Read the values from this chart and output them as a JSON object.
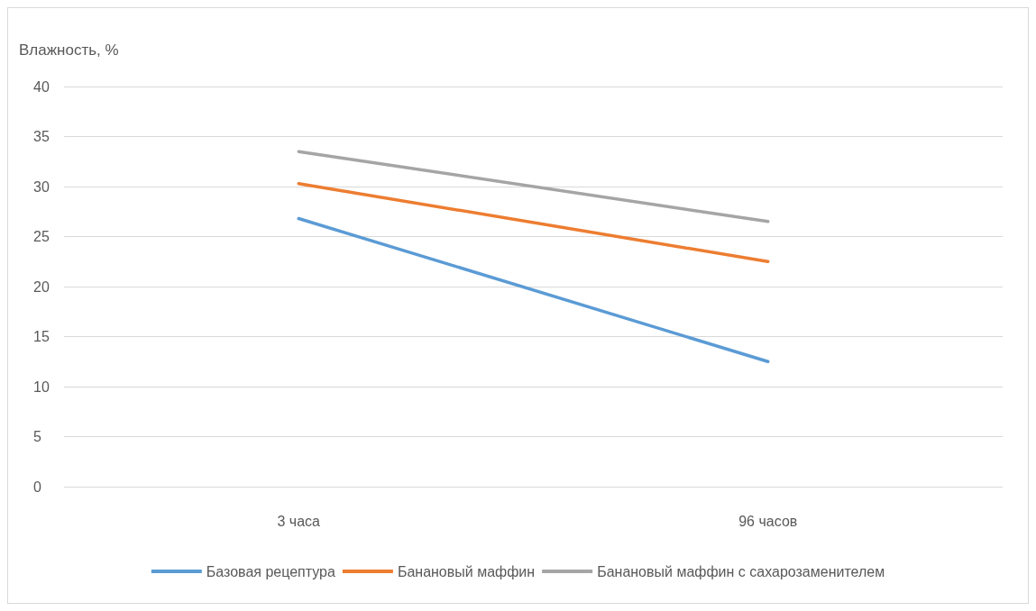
{
  "chart_data": {
    "type": "line",
    "ylabel": "Влажность, %",
    "categories": [
      "3 часа",
      "96 часов"
    ],
    "series": [
      {
        "name": "Базовая рецептура",
        "color": "#5b9bd5",
        "values": [
          26.8,
          12.5
        ]
      },
      {
        "name": "Банановый маффин",
        "color": "#ed7d31",
        "values": [
          30.3,
          22.5
        ]
      },
      {
        "name": "Банановый маффин с сахарозаменителем",
        "color": "#a5a5a5",
        "values": [
          33.5,
          26.5
        ]
      }
    ],
    "ylim": [
      0,
      40
    ],
    "yticks": [
      0,
      5,
      10,
      15,
      20,
      25,
      30,
      35,
      40
    ],
    "grid": "y",
    "legend": "bottom",
    "marker": "none",
    "line_style": "solid"
  }
}
